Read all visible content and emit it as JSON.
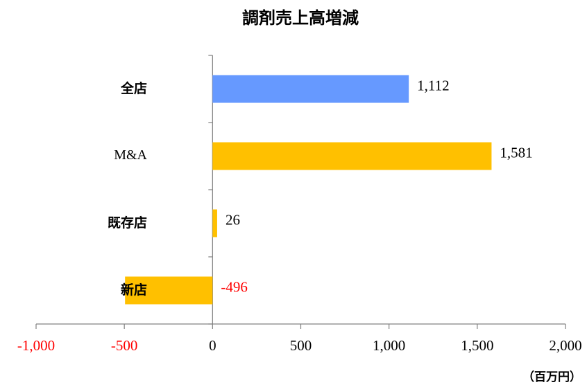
{
  "chart_data": {
    "type": "bar",
    "orientation": "horizontal",
    "title": "調剤売上高増減",
    "categories": [
      "全店",
      "M&A",
      "既存店",
      "新店"
    ],
    "values": [
      1112,
      1581,
      26,
      -496
    ],
    "value_labels": [
      "1,112",
      "1,581",
      "26",
      "-496"
    ],
    "colors": [
      "#6699ff",
      "#ffc000",
      "#ffc000",
      "#ffc000"
    ],
    "negative_color": "#ff0000",
    "xlim": [
      -1000,
      2000
    ],
    "xticks": [
      {
        "value": -1000,
        "label": "-1,000"
      },
      -500,
      0,
      500,
      {
        "value": 1000,
        "label": "1,000"
      },
      {
        "value": 1500,
        "label": "1,500"
      },
      {
        "value": 2000,
        "label": "2,000"
      }
    ],
    "x_unit_label": "（百万円）"
  }
}
